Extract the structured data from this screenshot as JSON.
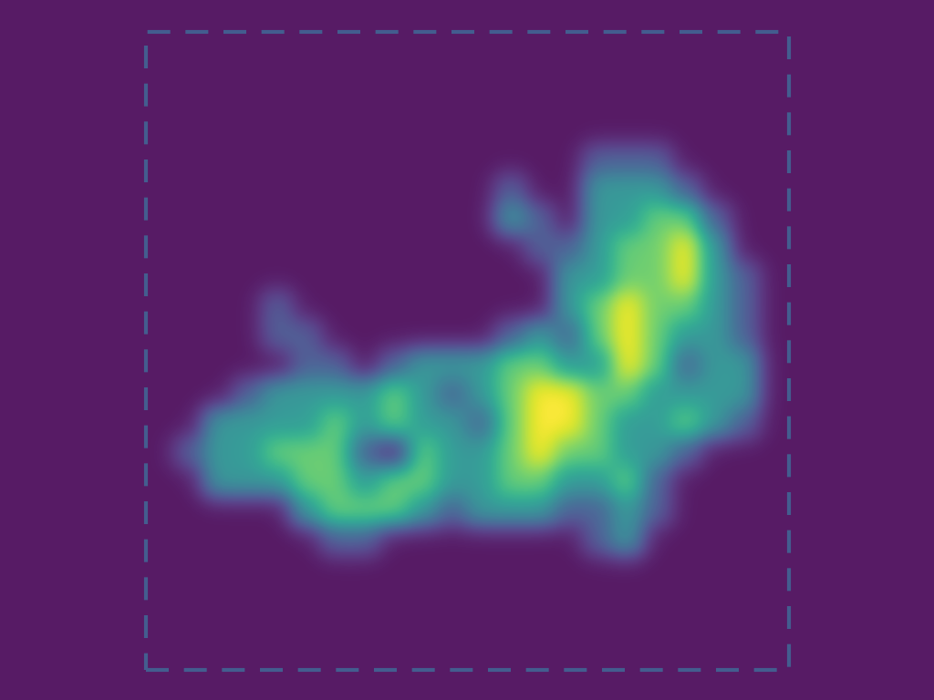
{
  "chart_data": {
    "type": "heatmap",
    "color": "viridis",
    "tick_labels": false,
    "cells": [
      [
        0,
        0,
        0,
        0,
        0,
        0,
        0,
        0,
        0,
        0,
        0,
        0,
        0,
        0,
        0,
        0,
        0,
        0,
        0,
        0,
        0,
        0,
        0,
        0,
        0,
        0,
        0,
        0,
        0,
        0,
        0,
        0
      ],
      [
        0,
        0,
        0,
        0,
        0,
        0,
        0,
        0,
        0,
        0,
        0,
        0,
        0,
        0,
        0,
        0,
        0,
        0,
        0,
        0,
        0,
        0,
        0,
        0,
        0,
        0,
        0,
        0,
        0,
        0,
        0,
        0
      ],
      [
        0,
        0,
        0,
        0,
        0,
        0,
        0,
        0,
        0,
        0,
        0,
        0,
        0,
        0,
        0,
        0,
        0,
        0,
        0,
        0,
        0,
        0,
        0,
        0,
        0,
        0,
        0,
        0,
        0,
        0,
        0,
        0
      ],
      [
        0,
        0,
        0,
        0,
        0,
        0,
        0,
        0,
        0,
        0,
        0,
        0,
        0,
        0,
        0,
        0,
        0,
        0,
        0,
        0,
        0,
        0,
        0,
        0,
        0,
        0,
        0,
        0,
        0,
        0,
        0,
        0
      ],
      [
        0,
        0,
        0,
        0,
        0,
        0,
        0,
        0,
        0,
        0,
        0,
        0,
        0,
        0,
        0,
        0,
        0,
        0,
        0,
        0,
        0,
        0,
        0,
        0,
        0,
        0,
        0,
        0,
        0,
        0,
        0,
        0
      ],
      [
        0,
        0,
        0,
        0,
        0,
        0,
        0,
        0,
        0,
        0,
        0,
        0,
        0,
        0,
        0,
        0,
        0,
        0,
        0,
        0,
        1,
        1,
        1,
        0,
        0,
        0,
        0,
        0,
        0,
        0,
        0,
        0
      ],
      [
        0,
        0,
        0,
        0,
        0,
        0,
        0,
        0,
        0,
        0,
        0,
        0,
        0,
        0,
        0,
        0,
        0,
        1,
        0,
        0,
        2,
        2,
        2,
        1,
        0,
        0,
        0,
        0,
        0,
        0,
        0,
        0
      ],
      [
        0,
        0,
        0,
        0,
        0,
        0,
        0,
        0,
        0,
        0,
        0,
        0,
        0,
        0,
        0,
        0,
        0,
        2,
        1,
        0,
        2,
        2,
        3,
        3,
        1,
        0,
        0,
        0,
        0,
        0,
        0,
        0
      ],
      [
        0,
        0,
        0,
        0,
        0,
        0,
        0,
        0,
        0,
        0,
        0,
        0,
        0,
        0,
        0,
        0,
        0,
        0,
        1,
        1,
        2,
        3,
        3,
        4,
        2,
        0,
        0,
        0,
        0,
        0,
        0,
        0
      ],
      [
        0,
        0,
        0,
        0,
        0,
        0,
        0,
        0,
        0,
        0,
        0,
        0,
        0,
        0,
        0,
        0,
        0,
        0,
        0,
        2,
        2,
        3,
        3,
        4,
        2,
        1,
        0,
        0,
        0,
        0,
        0,
        0
      ],
      [
        0,
        0,
        0,
        0,
        0,
        0,
        0,
        0,
        0,
        1,
        0,
        0,
        0,
        0,
        0,
        0,
        0,
        0,
        0,
        2,
        3,
        4,
        3,
        3,
        2,
        1,
        0,
        0,
        0,
        0,
        0,
        0
      ],
      [
        0,
        0,
        0,
        0,
        0,
        0,
        0,
        0,
        0,
        1,
        1,
        0,
        0,
        0,
        0,
        0,
        0,
        1,
        2,
        1,
        3,
        4,
        3,
        2,
        2,
        1,
        0,
        0,
        0,
        0,
        0,
        0
      ],
      [
        0,
        0,
        0,
        0,
        0,
        0,
        0,
        0,
        0,
        0,
        1,
        1,
        0,
        1,
        2,
        2,
        2,
        3,
        3,
        2,
        2,
        4,
        3,
        1,
        2,
        2,
        0,
        0,
        0,
        0,
        0,
        0
      ],
      [
        0,
        0,
        0,
        0,
        0,
        0,
        0,
        0,
        1,
        2,
        2,
        2,
        2,
        3,
        2,
        1,
        2,
        3,
        4,
        4,
        3,
        3,
        2,
        2,
        2,
        2,
        0,
        0,
        0,
        0,
        0,
        0
      ],
      [
        0,
        0,
        0,
        0,
        0,
        0,
        0,
        2,
        2,
        2,
        2,
        3,
        2,
        3,
        2,
        2,
        1,
        3,
        4,
        4,
        3,
        2,
        2,
        3,
        2,
        1,
        0,
        0,
        0,
        0,
        0,
        0
      ],
      [
        0,
        0,
        0,
        0,
        0,
        0,
        1,
        2,
        2,
        3,
        3,
        3,
        1,
        0,
        3,
        2,
        2,
        3,
        4,
        3,
        3,
        2,
        2,
        1,
        0,
        0,
        0,
        0,
        0,
        0,
        0,
        0
      ],
      [
        0,
        0,
        0,
        0,
        0,
        0,
        0,
        2,
        2,
        2,
        3,
        3,
        2,
        3,
        3,
        2,
        2,
        3,
        3,
        2,
        2,
        3,
        1,
        0,
        0,
        0,
        0,
        0,
        0,
        0,
        0,
        0
      ],
      [
        0,
        0,
        0,
        0,
        0,
        0,
        0,
        0,
        0,
        0,
        2,
        3,
        3,
        3,
        2,
        1,
        2,
        2,
        2,
        1,
        1,
        2,
        1,
        0,
        0,
        0,
        0,
        0,
        0,
        0,
        0,
        0
      ],
      [
        0,
        0,
        0,
        0,
        0,
        0,
        0,
        0,
        0,
        0,
        0,
        1,
        1,
        0,
        0,
        0,
        0,
        0,
        0,
        0,
        1,
        2,
        0,
        0,
        0,
        0,
        0,
        0,
        0,
        0,
        0,
        0
      ],
      [
        0,
        0,
        0,
        0,
        0,
        0,
        0,
        0,
        0,
        0,
        0,
        0,
        0,
        0,
        0,
        0,
        0,
        0,
        0,
        0,
        0,
        0,
        0,
        0,
        0,
        0,
        0,
        0,
        0,
        0,
        0,
        0
      ],
      [
        0,
        0,
        0,
        0,
        0,
        0,
        0,
        0,
        0,
        0,
        0,
        0,
        0,
        0,
        0,
        0,
        0,
        0,
        0,
        0,
        0,
        0,
        0,
        0,
        0,
        0,
        0,
        0,
        0,
        0,
        0,
        0
      ],
      [
        0,
        0,
        0,
        0,
        0,
        0,
        0,
        0,
        0,
        0,
        0,
        0,
        0,
        0,
        0,
        0,
        0,
        0,
        0,
        0,
        0,
        0,
        0,
        0,
        0,
        0,
        0,
        0,
        0,
        0,
        0,
        0
      ],
      [
        0,
        0,
        0,
        0,
        0,
        0,
        0,
        0,
        0,
        0,
        0,
        0,
        0,
        0,
        0,
        0,
        0,
        0,
        0,
        0,
        0,
        0,
        0,
        0,
        0,
        0,
        0,
        0,
        0,
        0,
        0,
        0
      ],
      [
        0,
        0,
        0,
        0,
        0,
        0,
        0,
        0,
        0,
        0,
        0,
        0,
        0,
        0,
        0,
        0,
        0,
        0,
        0,
        0,
        0,
        0,
        0,
        0,
        0,
        0,
        0,
        0,
        0,
        0,
        0,
        0
      ]
    ]
  }
}
